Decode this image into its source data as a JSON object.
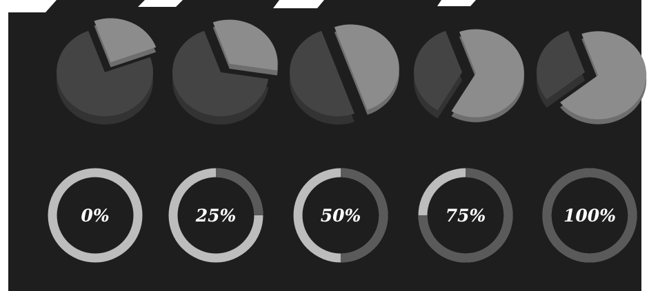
{
  "colors": {
    "background": "#1e1e1e",
    "light_slice": "#8c8c8c",
    "light_slice_side": "#6e6e6e",
    "dark_slice": "#444444",
    "dark_slice_side": "#333333",
    "ring_light": "#bdbdbd",
    "ring_dark": "#5a5a5a",
    "label": "#ffffff",
    "page_edge": "#ffffff"
  },
  "chart_data": [
    {
      "type": "pie",
      "style": "3d-exploded",
      "charts": [
        {
          "light_fraction": 0.25
        },
        {
          "light_fraction": 0.33
        },
        {
          "light_fraction": 0.5
        },
        {
          "light_fraction": 0.64
        },
        {
          "light_fraction": 0.7
        }
      ]
    },
    {
      "type": "progress-ring",
      "rings": [
        {
          "label": "0%",
          "value": 0
        },
        {
          "label": "25%",
          "value": 25
        },
        {
          "label": "50%",
          "value": 50
        },
        {
          "label": "75%",
          "value": 75
        },
        {
          "label": "100%",
          "value": 100
        }
      ]
    }
  ]
}
